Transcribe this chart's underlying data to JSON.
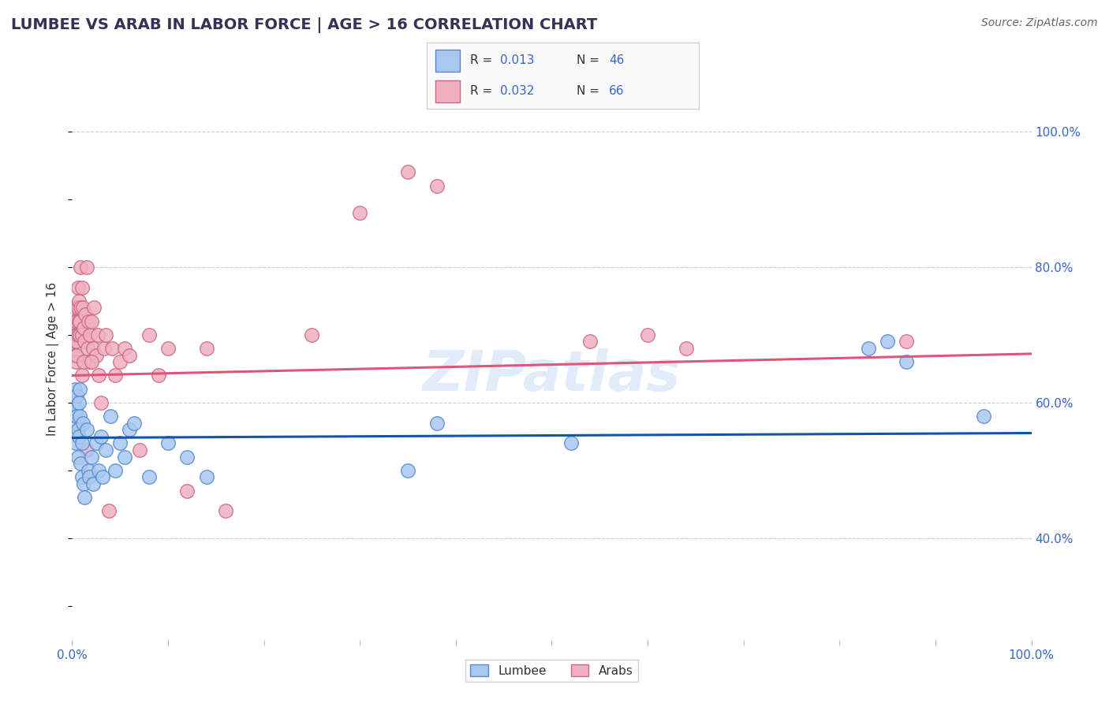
{
  "title": "LUMBEE VS ARAB IN LABOR FORCE | AGE > 16 CORRELATION CHART",
  "source_text": "Source: ZipAtlas.com",
  "ylabel": "In Labor Force | Age > 16",
  "xlim": [
    0.0,
    1.0
  ],
  "ylim": [
    0.25,
    1.08
  ],
  "x_ticks": [
    0.0,
    0.1,
    0.2,
    0.3,
    0.4,
    0.5,
    0.6,
    0.7,
    0.8,
    0.9,
    1.0
  ],
  "y_ticks_right": [
    0.4,
    0.6,
    0.8,
    1.0
  ],
  "y_tick_labels_right": [
    "40.0%",
    "60.0%",
    "80.0%",
    "100.0%"
  ],
  "grid_color": "#cccccc",
  "background_color": "#ffffff",
  "watermark": "ZIPatlas",
  "lumbee_color": "#a8c8f0",
  "arab_color": "#f0b0c0",
  "lumbee_edge_color": "#5588cc",
  "arab_edge_color": "#cc6688",
  "lumbee_line_color": "#1155aa",
  "arab_line_color": "#dd5577",
  "lumbee_R": 0.013,
  "lumbee_N": 46,
  "arab_R": 0.032,
  "arab_N": 66,
  "lumbee_line_y0": 0.548,
  "lumbee_line_y1": 0.555,
  "arab_line_y0": 0.64,
  "arab_line_y1": 0.672,
  "lumbee_x": [
    0.002,
    0.003,
    0.003,
    0.004,
    0.004,
    0.005,
    0.005,
    0.006,
    0.006,
    0.007,
    0.007,
    0.008,
    0.008,
    0.009,
    0.01,
    0.01,
    0.011,
    0.012,
    0.013,
    0.015,
    0.017,
    0.018,
    0.02,
    0.022,
    0.025,
    0.028,
    0.03,
    0.032,
    0.035,
    0.04,
    0.045,
    0.05,
    0.055,
    0.06,
    0.065,
    0.08,
    0.1,
    0.12,
    0.14,
    0.35,
    0.38,
    0.52,
    0.83,
    0.85,
    0.87,
    0.95
  ],
  "lumbee_y": [
    0.6,
    0.62,
    0.57,
    0.59,
    0.54,
    0.61,
    0.58,
    0.52,
    0.56,
    0.6,
    0.55,
    0.62,
    0.58,
    0.51,
    0.54,
    0.49,
    0.57,
    0.48,
    0.46,
    0.56,
    0.5,
    0.49,
    0.52,
    0.48,
    0.54,
    0.5,
    0.55,
    0.49,
    0.53,
    0.58,
    0.5,
    0.54,
    0.52,
    0.56,
    0.57,
    0.49,
    0.54,
    0.52,
    0.49,
    0.5,
    0.57,
    0.54,
    0.68,
    0.69,
    0.66,
    0.58
  ],
  "arab_x": [
    0.001,
    0.002,
    0.002,
    0.003,
    0.003,
    0.003,
    0.004,
    0.004,
    0.005,
    0.005,
    0.005,
    0.005,
    0.006,
    0.006,
    0.006,
    0.007,
    0.007,
    0.008,
    0.008,
    0.009,
    0.009,
    0.01,
    0.01,
    0.011,
    0.012,
    0.013,
    0.014,
    0.015,
    0.016,
    0.017,
    0.018,
    0.019,
    0.02,
    0.022,
    0.023,
    0.025,
    0.027,
    0.028,
    0.03,
    0.033,
    0.035,
    0.038,
    0.042,
    0.045,
    0.05,
    0.055,
    0.06,
    0.07,
    0.08,
    0.09,
    0.1,
    0.12,
    0.14,
    0.16,
    0.25,
    0.3,
    0.35,
    0.38,
    0.54,
    0.6,
    0.64,
    0.87,
    0.01,
    0.012,
    0.015,
    0.02
  ],
  "arab_y": [
    0.7,
    0.67,
    0.72,
    0.71,
    0.74,
    0.69,
    0.7,
    0.66,
    0.7,
    0.72,
    0.69,
    0.67,
    0.74,
    0.7,
    0.77,
    0.72,
    0.75,
    0.72,
    0.7,
    0.74,
    0.8,
    0.77,
    0.7,
    0.74,
    0.71,
    0.69,
    0.73,
    0.8,
    0.68,
    0.72,
    0.66,
    0.7,
    0.72,
    0.68,
    0.74,
    0.67,
    0.7,
    0.64,
    0.6,
    0.68,
    0.7,
    0.44,
    0.68,
    0.64,
    0.66,
    0.68,
    0.67,
    0.53,
    0.7,
    0.64,
    0.68,
    0.47,
    0.68,
    0.44,
    0.7,
    0.88,
    0.94,
    0.92,
    0.69,
    0.7,
    0.68,
    0.69,
    0.64,
    0.66,
    0.53,
    0.66
  ]
}
